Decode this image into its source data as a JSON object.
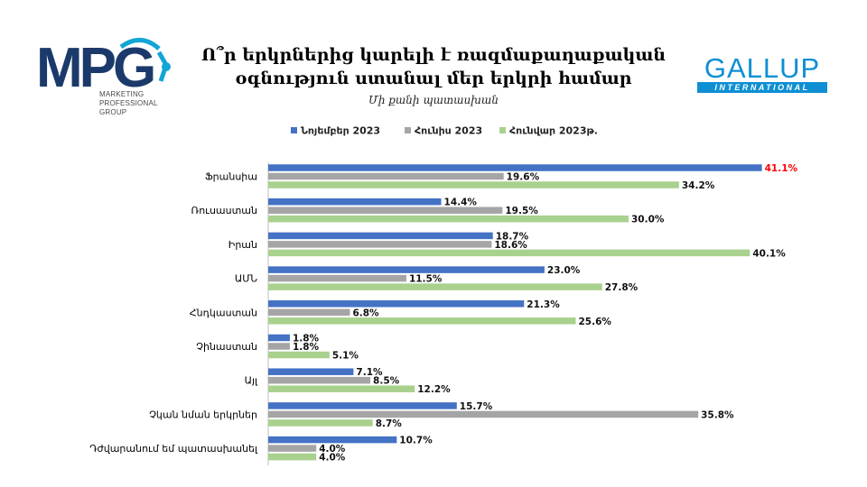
{
  "logo_mpg": {
    "mark": "MPG",
    "line1": "MARKETING",
    "line2": "PROFESSIONAL",
    "line3": "GROUP"
  },
  "logo_gallup": {
    "word": "GALLUP",
    "tagline": "INTERNATIONAL"
  },
  "colors": {
    "nov2023": "#4472C4",
    "jun2023": "#A5A5A5",
    "jan2023": "#A9D18E",
    "highlight": "#FF0000"
  },
  "chart_data": {
    "type": "bar",
    "orientation": "horizontal",
    "title_line1": "Ո՞ր երկրներից կարելի է ռազմաքաղաքական",
    "title_line2": "օգնություն ստանալ մեր երկրի համար",
    "subtitle": "Մի քանի պատասխան",
    "legend_position": "top",
    "grid": false,
    "xlim": [
      0,
      45
    ],
    "categories": [
      "Ֆրանսիա",
      "Ռուսաստան",
      "Իրան",
      "ԱՄՆ",
      "Հնդկաստան",
      "Չինաստան",
      "Այլ",
      "Չկան նման երկրներ",
      "Դժվարանում եմ պատասխանել"
    ],
    "series": [
      {
        "name": "Նոյեմբեր 2023",
        "values": [
          41.1,
          14.4,
          18.7,
          23.0,
          21.3,
          1.8,
          7.1,
          15.7,
          10.7
        ]
      },
      {
        "name": "Հունիս 2023",
        "values": [
          19.6,
          19.5,
          18.6,
          11.5,
          6.8,
          1.8,
          8.5,
          35.8,
          4.0
        ]
      },
      {
        "name": "Հունվար 2023թ.",
        "values": [
          34.2,
          30.0,
          40.1,
          27.8,
          25.6,
          5.1,
          12.2,
          8.7,
          4.0
        ]
      }
    ],
    "value_labels": [
      [
        "41.1%",
        "14.4%",
        "18.7%",
        "23.0%",
        "21.3%",
        "1.8%",
        "7.1%",
        "15.7%",
        "10.7%"
      ],
      [
        "19.6%",
        "19.5%",
        "18.6%",
        "11.5%",
        "6.8%",
        "1.8%",
        "8.5%",
        "35.8%",
        "4.0%"
      ],
      [
        "34.2%",
        "30.0%",
        "40.1%",
        "27.8%",
        "25.6%",
        "5.1%",
        "12.2%",
        "8.7%",
        "4.0%"
      ]
    ],
    "highlighted_label": {
      "series": 0,
      "category": 0
    }
  }
}
